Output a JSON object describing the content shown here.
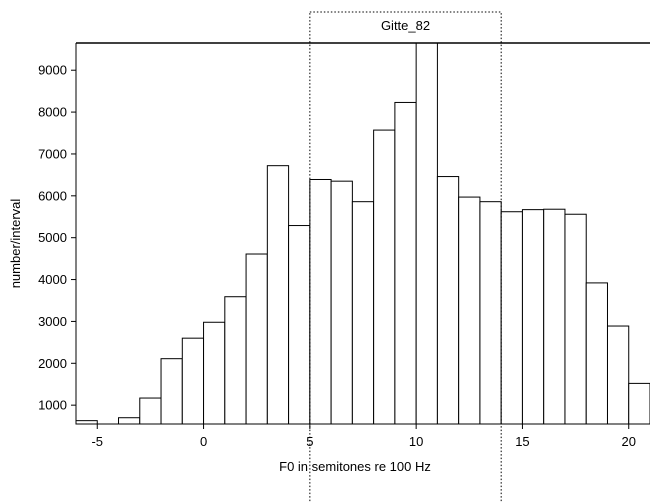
{
  "chart_data": {
    "type": "bar",
    "legend_label": "Gitte_82",
    "xlabel": "F0 in semitones re 100 Hz",
    "ylabel": "number/interval",
    "xlim": [
      -6,
      21
    ],
    "ylim": [
      550,
      9650
    ],
    "x_ticks": [
      -5,
      0,
      5,
      10,
      15,
      20
    ],
    "y_ticks": [
      1000,
      2000,
      3000,
      4000,
      5000,
      6000,
      7000,
      8000,
      9000
    ],
    "bin_width": 1,
    "bins": [
      {
        "x0": -6,
        "value": 630
      },
      {
        "x0": -5,
        "value": 550
      },
      {
        "x0": -4,
        "value": 700
      },
      {
        "x0": -3,
        "value": 1170
      },
      {
        "x0": -2,
        "value": 2110
      },
      {
        "x0": -1,
        "value": 2600
      },
      {
        "x0": 0,
        "value": 2980
      },
      {
        "x0": 1,
        "value": 3590
      },
      {
        "x0": 2,
        "value": 4610
      },
      {
        "x0": 3,
        "value": 6720
      },
      {
        "x0": 4,
        "value": 5290
      },
      {
        "x0": 5,
        "value": 6390
      },
      {
        "x0": 6,
        "value": 6350
      },
      {
        "x0": 7,
        "value": 5860
      },
      {
        "x0": 8,
        "value": 7570
      },
      {
        "x0": 9,
        "value": 8230
      },
      {
        "x0": 10,
        "value": 9650
      },
      {
        "x0": 11,
        "value": 6460
      },
      {
        "x0": 12,
        "value": 5970
      },
      {
        "x0": 13,
        "value": 5860
      },
      {
        "x0": 14,
        "value": 5620
      },
      {
        "x0": 15,
        "value": 5670
      },
      {
        "x0": 16,
        "value": 5680
      },
      {
        "x0": 17,
        "value": 5560
      },
      {
        "x0": 18,
        "value": 3920
      },
      {
        "x0": 19,
        "value": 2890
      },
      {
        "x0": 20,
        "value": 1520
      }
    ],
    "highlight_range": [
      5,
      14
    ],
    "grid": false
  }
}
